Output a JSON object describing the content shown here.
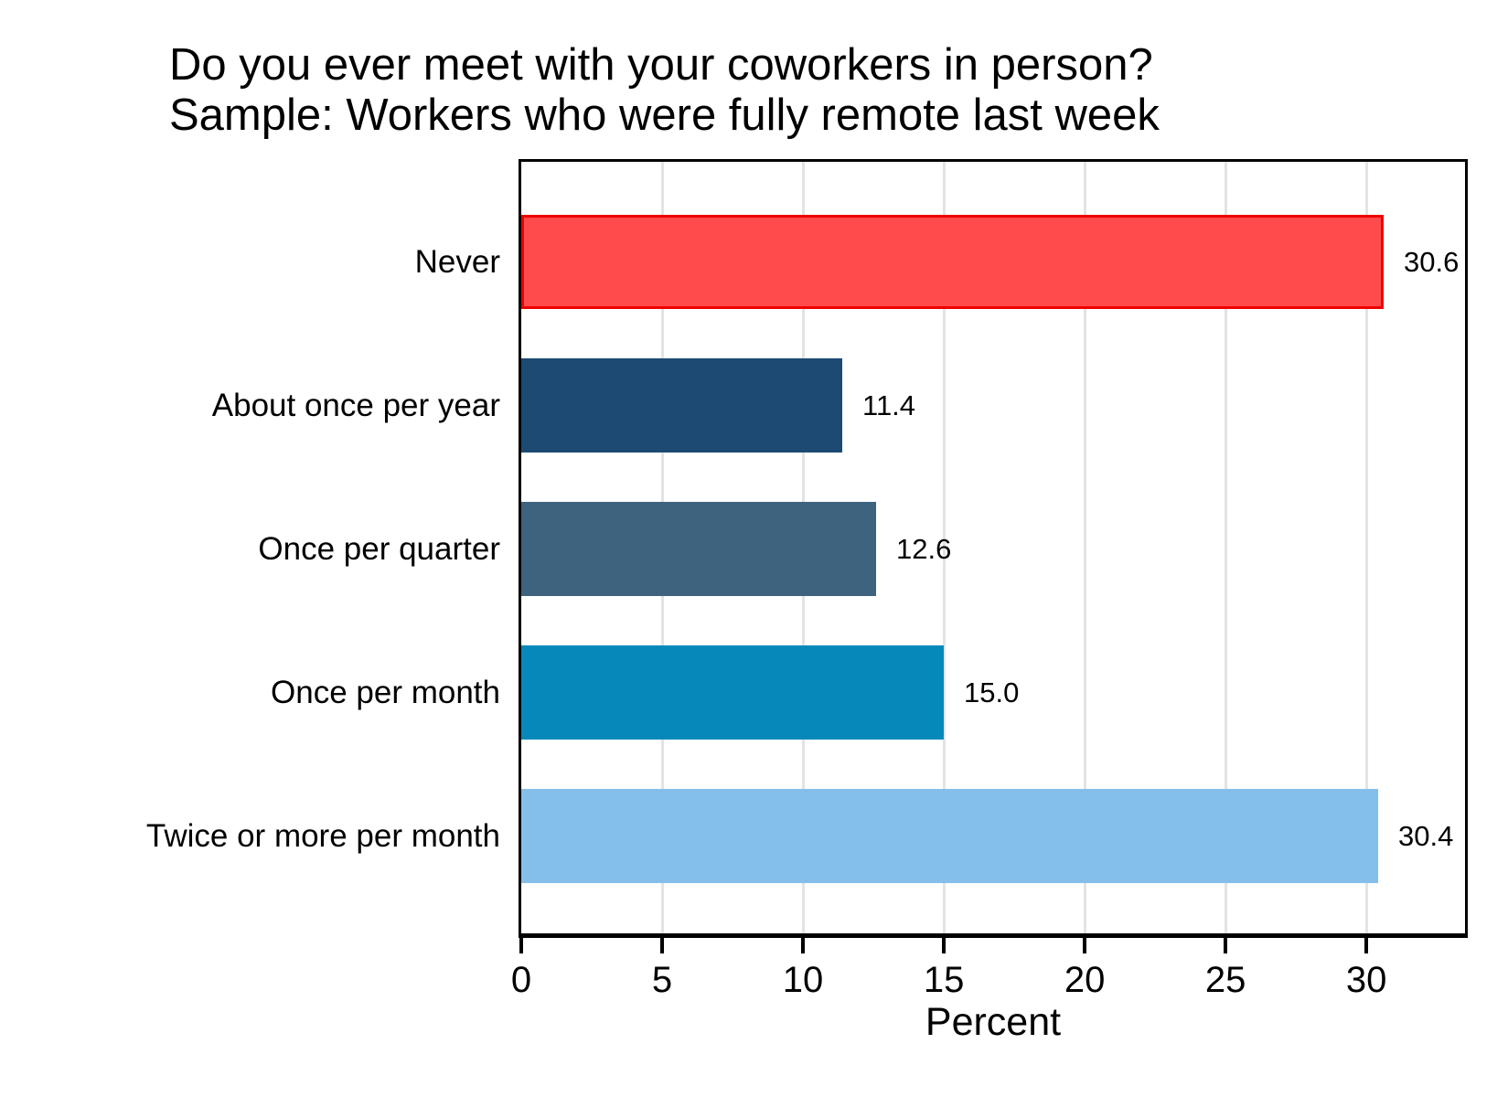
{
  "title": {
    "line1": "Do you ever meet with your coworkers in person?",
    "line2": "Sample: Workers who were fully remote last week"
  },
  "chart_data": {
    "type": "bar",
    "orientation": "horizontal",
    "title": "Do you ever meet with your coworkers in person? Sample: Workers who were fully remote last week",
    "categories": [
      "Never",
      "About once per year",
      "Once per quarter",
      "Once per month",
      "Twice or more per month"
    ],
    "values": [
      30.6,
      11.4,
      12.6,
      15.0,
      30.4
    ],
    "value_labels": [
      "30.6",
      "11.4",
      "12.6",
      "15.0",
      "30.4"
    ],
    "bar_colors": [
      "#ff4b4b",
      "#1c4a73",
      "#3e637f",
      "#0689ba",
      "#84bfe9"
    ],
    "bar_border_colors": [
      "#ee0000",
      "#1c4a73",
      "#3e637f",
      "#0689ba",
      "#84bfe9"
    ],
    "xlabel": "Percent",
    "ylabel": "",
    "x_ticks": [
      0,
      5,
      10,
      15,
      20,
      25,
      30
    ],
    "xlim": [
      0,
      33.5
    ],
    "grid": "vertical gridlines at ticks, light gray",
    "legend_position": "none"
  },
  "colors": {
    "background": "#ffffff",
    "frame": "#000000",
    "gridline": "#e3e3e3",
    "text": "#000000"
  }
}
